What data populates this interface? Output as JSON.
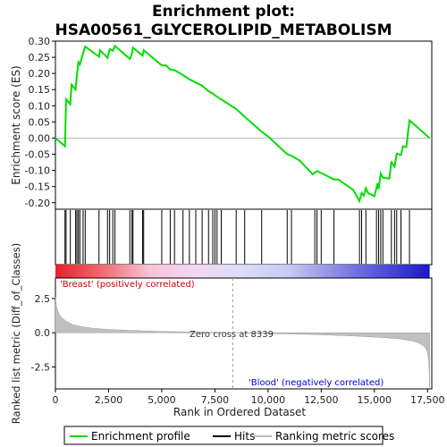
{
  "chart_data": {
    "type": "line",
    "title": "Enrichment plot:\nHSA00561_GLYCEROLIPID_METABOLISM",
    "title_lines": [
      "Enrichment plot:",
      "HSA00561_GLYCEROLIPID_METABOLISM"
    ],
    "top_panel": {
      "ylabel": "Enrichment score (ES)",
      "ylim": [
        -0.22,
        0.3
      ],
      "yticks": [
        "0.30",
        "0.25",
        "0.20",
        "0.15",
        "0.10",
        "0.05",
        "0.00",
        "-0.05",
        "-0.10",
        "-0.15",
        "-0.20"
      ],
      "ytick_values": [
        0.3,
        0.25,
        0.2,
        0.15,
        0.1,
        0.05,
        0.0,
        -0.05,
        -0.1,
        -0.15,
        -0.2
      ],
      "line_color": "#00dd00",
      "series": [
        {
          "x": [
            0,
            450,
            500,
            700,
            760,
            950,
            1010,
            1080,
            1150,
            1300,
            1400,
            2050,
            2100,
            2450,
            2550,
            2700,
            2800,
            3500,
            3600,
            3650,
            4100,
            4150,
            5000,
            5200,
            5400,
            5600,
            6000,
            6300,
            6600,
            6900,
            7200,
            7400,
            7500,
            7600,
            7800,
            8500,
            9000,
            9700,
            10000,
            10900,
            11100,
            11500,
            12100,
            12300,
            12500,
            12800,
            13100,
            13300,
            14000,
            14300,
            14400,
            14500,
            14600,
            14700,
            15000,
            15150,
            15200,
            15300,
            15400,
            15700,
            15800,
            15950,
            16050,
            16250,
            16350,
            16500,
            16650,
            17600
          ],
          "y": [
            0.0,
            -0.025,
            0.12,
            0.105,
            0.165,
            0.15,
            0.195,
            0.235,
            0.228,
            0.262,
            0.283,
            0.252,
            0.272,
            0.248,
            0.275,
            0.27,
            0.285,
            0.245,
            0.262,
            0.28,
            0.255,
            0.272,
            0.225,
            0.225,
            0.212,
            0.21,
            0.195,
            0.182,
            0.172,
            0.162,
            0.145,
            0.138,
            0.132,
            0.128,
            0.12,
            0.09,
            0.06,
            0.02,
            0.005,
            -0.05,
            -0.055,
            -0.07,
            -0.112,
            -0.102,
            -0.108,
            -0.118,
            -0.128,
            -0.128,
            -0.16,
            -0.195,
            -0.17,
            -0.178,
            -0.155,
            -0.17,
            -0.18,
            -0.14,
            -0.158,
            -0.11,
            -0.122,
            -0.125,
            -0.075,
            -0.088,
            -0.048,
            -0.052,
            -0.025,
            -0.028,
            0.055,
            0.0
          ]
        }
      ]
    },
    "hits": [
      450,
      500,
      700,
      950,
      1010,
      1080,
      1150,
      1300,
      1400,
      2050,
      2450,
      2550,
      2700,
      2800,
      3500,
      3600,
      3650,
      4100,
      4150,
      5000,
      5400,
      5600,
      6000,
      6300,
      6600,
      6900,
      7200,
      7400,
      7500,
      7600,
      7800,
      8500,
      8900,
      9700,
      10900,
      11100,
      12200,
      12300,
      12500,
      13100,
      14300,
      14400,
      14600,
      15100,
      15200,
      15300,
      15400,
      15800,
      15950,
      16050,
      16250,
      16650
    ],
    "bottom_panel": {
      "ylabel": "Ranked list metric (Diff_of_Classes)",
      "xlabel": "Rank in Ordered Dataset",
      "ylim": [
        -4.1,
        4.0
      ],
      "yticks": [
        "2.5",
        "0.0",
        "-2.5"
      ],
      "ytick_values": [
        2.5,
        0.0,
        -2.5
      ],
      "xticks": [
        "0",
        "2,500",
        "5,000",
        "7,500",
        "10,000",
        "12,500",
        "15,000",
        "17,500"
      ],
      "xtick_values": [
        0,
        2500,
        5000,
        7500,
        10000,
        12500,
        15000,
        17500
      ],
      "metric_curve": {
        "x": [
          0,
          50,
          150,
          300,
          500,
          800,
          1200,
          1800,
          2500,
          3500,
          5000,
          7000,
          8339,
          10000,
          12000,
          13500,
          14500,
          15500,
          16200,
          16800,
          17100,
          17300,
          17400,
          17500,
          17560,
          17600
        ],
        "y": [
          2.6,
          1.9,
          1.4,
          1.1,
          0.85,
          0.6,
          0.45,
          0.32,
          0.24,
          0.17,
          0.1,
          0.04,
          0.0,
          -0.05,
          -0.12,
          -0.2,
          -0.27,
          -0.36,
          -0.45,
          -0.6,
          -0.75,
          -0.95,
          -1.1,
          -1.4,
          -2.2,
          -4.0
        ]
      },
      "zero_cross_label": "Zero cross at 8339",
      "zero_cross_x": 8339,
      "positive_label": "'Breast' (positively correlated)",
      "negative_label": "'Blood' (negatively correlated)",
      "positive_color": "#cc0000",
      "negative_color": "#0000cc"
    },
    "xlim": [
      0,
      17700
    ],
    "gradient_stops": [
      "#e8202a",
      "#f06a70",
      "#f9c2d8",
      "#f4d6f4",
      "#dcdcf8",
      "#c8c8f4",
      "#8a8ae6",
      "#5050d8",
      "#1818c8"
    ],
    "legend": [
      {
        "label": "Enrichment profile",
        "color": "#00dd00"
      },
      {
        "label": "Hits",
        "color": "#000000"
      },
      {
        "label": "Ranking metric scores",
        "color": "#bbbbbb"
      }
    ]
  }
}
